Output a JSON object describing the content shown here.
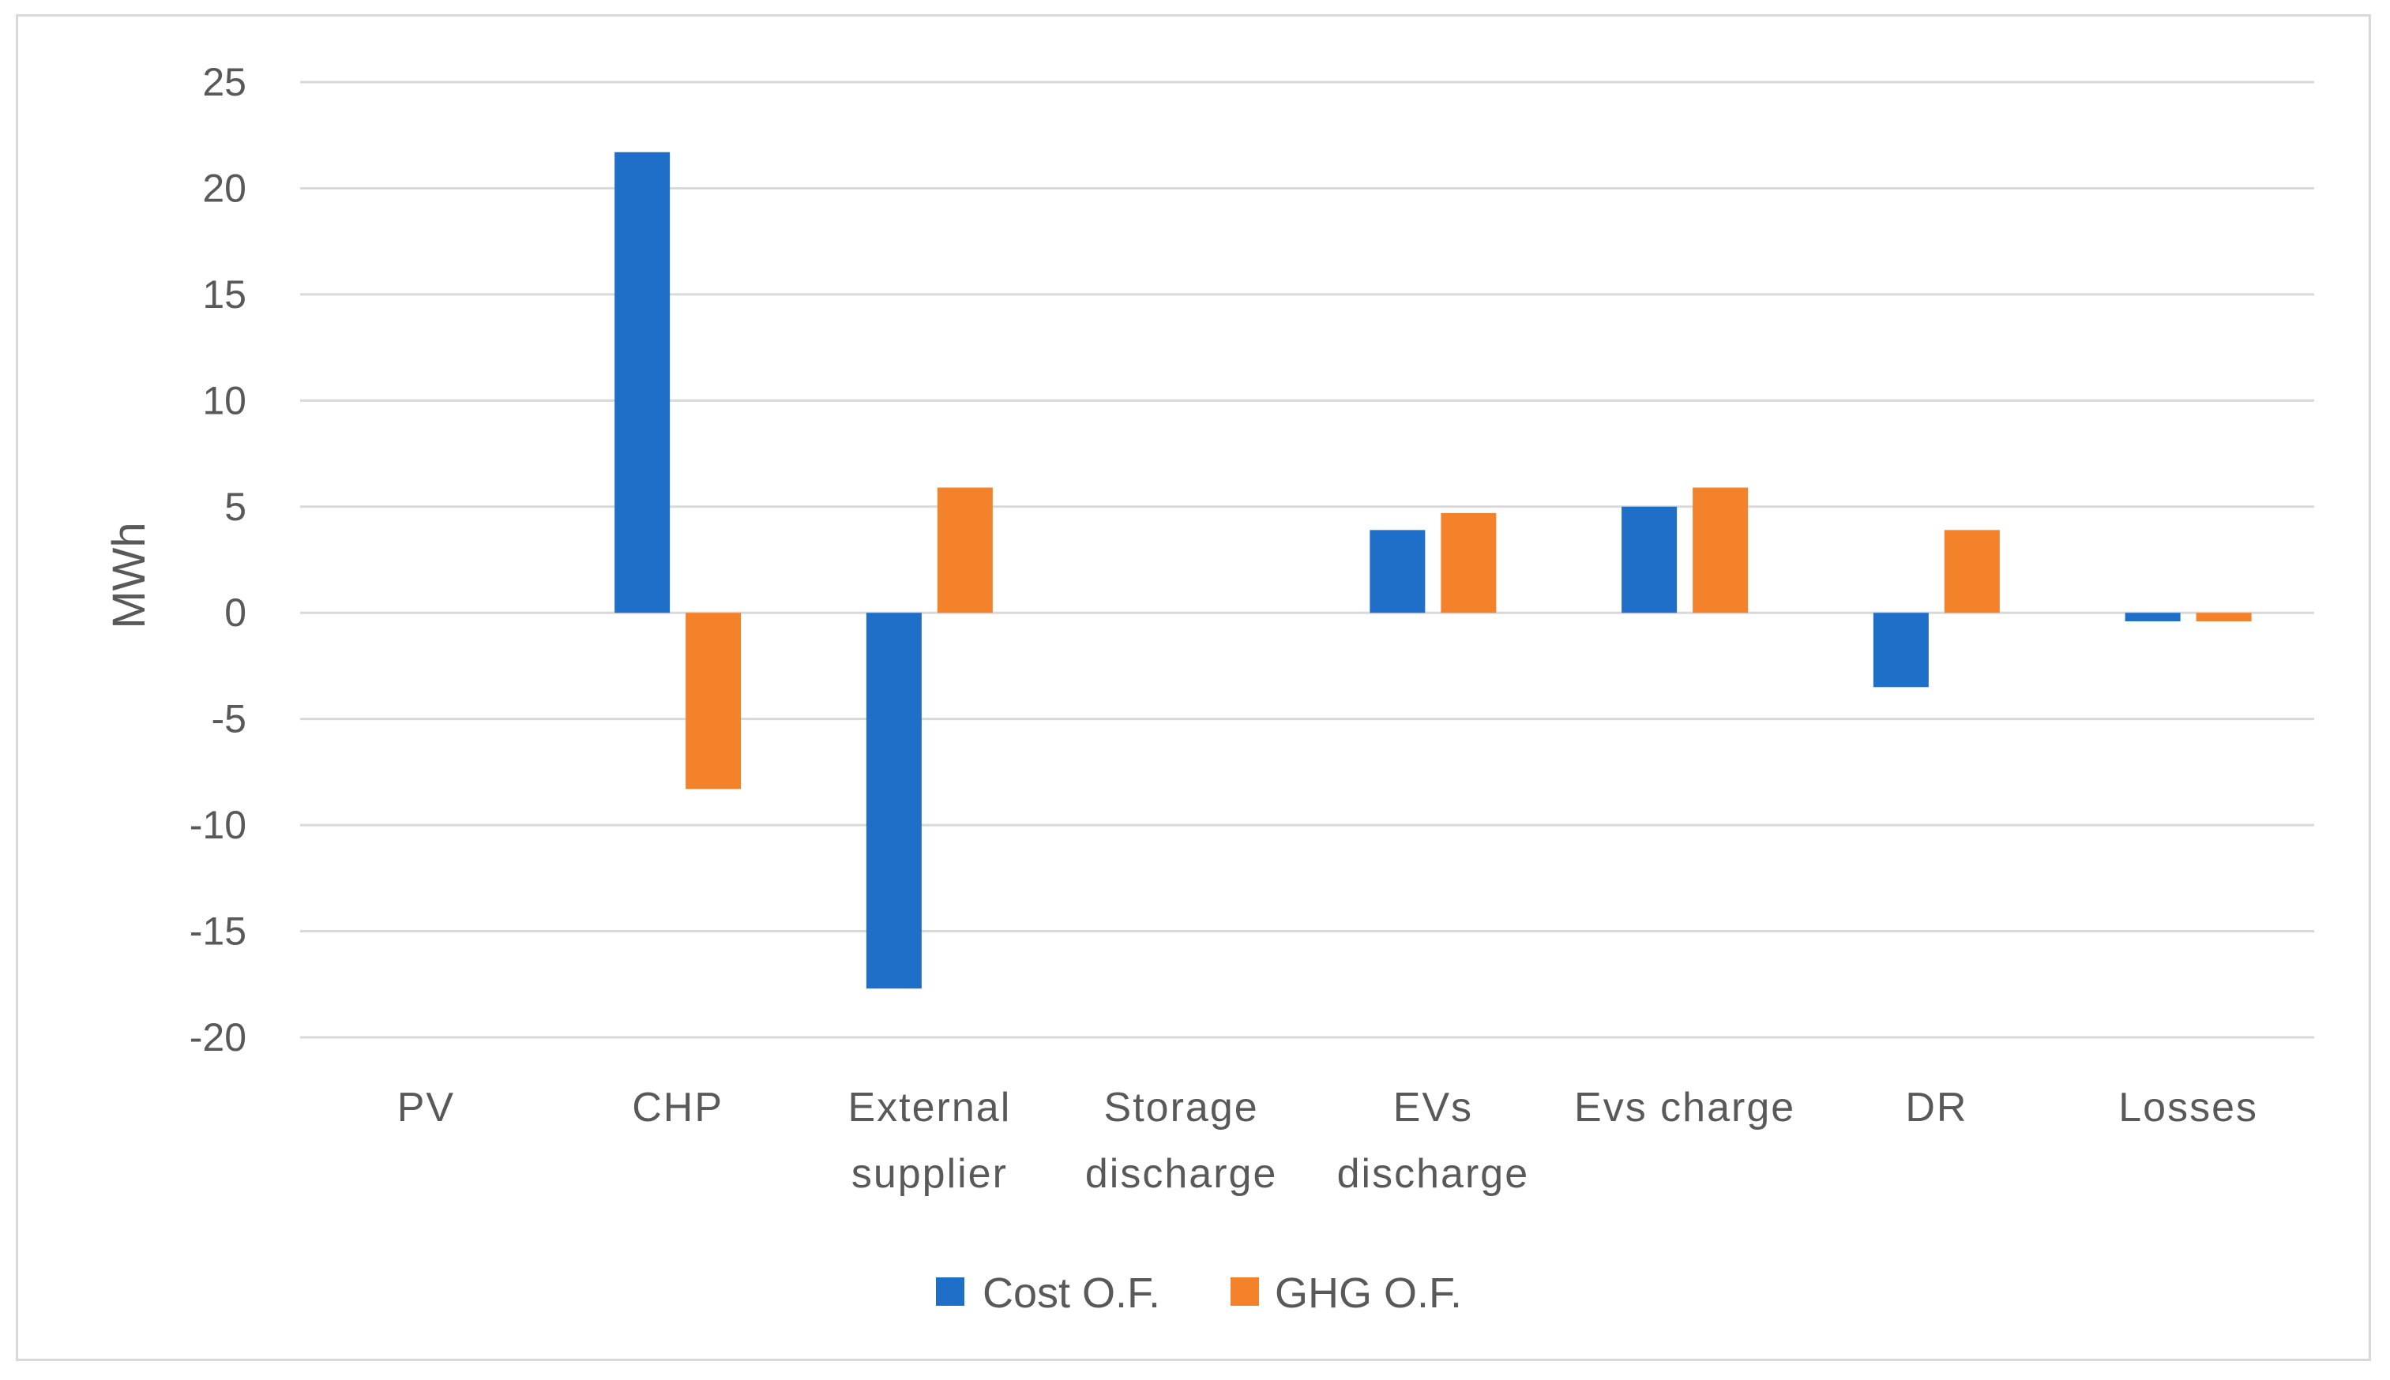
{
  "chart_data": {
    "type": "bar",
    "title": "",
    "xlabel": "",
    "ylabel": "MWh",
    "ylim": [
      -20,
      25
    ],
    "yticks": [
      25,
      20,
      15,
      10,
      5,
      0,
      -5,
      -10,
      -15,
      -20
    ],
    "grid": true,
    "legend_position": "bottom",
    "categories": [
      [
        "PV"
      ],
      [
        "CHP"
      ],
      [
        "External",
        "supplier"
      ],
      [
        "Storage",
        "discharge"
      ],
      [
        "EVs",
        "discharge"
      ],
      [
        "Evs charge"
      ],
      [
        "DR"
      ],
      [
        "Losses"
      ]
    ],
    "series": [
      {
        "name": "Cost O.F.",
        "color": "#1f6fc8",
        "values": [
          0,
          21.7,
          -17.7,
          0,
          3.9,
          5.0,
          -3.5,
          -0.4
        ]
      },
      {
        "name": "GHG O.F.",
        "color": "#f4822a",
        "values": [
          0,
          -8.3,
          5.9,
          0,
          4.7,
          5.9,
          3.9,
          -0.4
        ]
      }
    ]
  }
}
